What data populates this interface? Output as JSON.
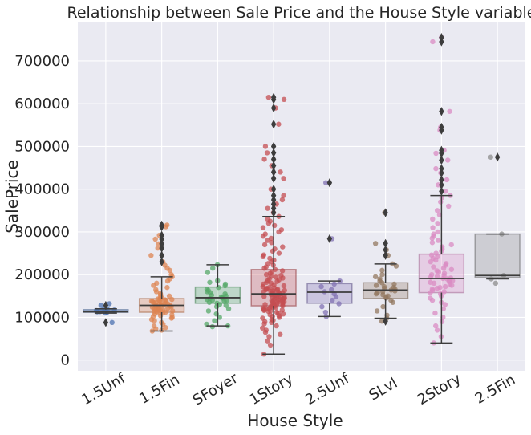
{
  "chart_data": {
    "type": "box",
    "title": "Relationship between Sale Price and the House Style variable",
    "xlabel": "House Style",
    "ylabel": "SalePrice",
    "ylim": [
      -25000,
      790000
    ],
    "yticks": [
      0,
      100000,
      200000,
      300000,
      400000,
      500000,
      600000,
      700000
    ],
    "ytick_labels": [
      "0",
      "100000",
      "200000",
      "300000",
      "400000",
      "500000",
      "600000",
      "700000"
    ],
    "grid": true,
    "background": "#eaeaf2",
    "categories": [
      "1.5Unf",
      "1.5Fin",
      "SFoyer",
      "1Story",
      "2.5Unf",
      "SLvl",
      "2Story",
      "2.5Fin"
    ],
    "colors": [
      "#4c72b0",
      "#dd8452",
      "#55a868",
      "#c44e52",
      "#8172b3",
      "#937860",
      "#da8bc3",
      "#8c8c8c"
    ],
    "boxes": [
      {
        "category": "1.5Unf",
        "whislo": 110000,
        "q1": 112000,
        "med": 113000,
        "q3": 118000,
        "whishi": 120000,
        "fliers": [
          88000,
          128000
        ]
      },
      {
        "category": "1.5Fin",
        "whislo": 68000,
        "q1": 112000,
        "med": 128000,
        "q3": 144000,
        "whishi": 195000,
        "fliers": [
          230000,
          245000,
          262000,
          272000,
          283000,
          292000,
          312000,
          316000
        ]
      },
      {
        "category": "SFoyer",
        "whislo": 80000,
        "q1": 133000,
        "med": 146000,
        "q3": 171000,
        "whishi": 223000,
        "fliers": []
      },
      {
        "category": "1Story",
        "whislo": 14000,
        "q1": 127000,
        "med": 155000,
        "q3": 212000,
        "whishi": 336000,
        "fliers": [
          345000,
          355000,
          365000,
          375000,
          385000,
          400000,
          425000,
          440000,
          455000,
          470000,
          485000,
          500000,
          552000,
          590000,
          610000,
          615000
        ]
      },
      {
        "category": "2.5Unf",
        "whislo": 102000,
        "q1": 133000,
        "med": 159000,
        "q3": 179000,
        "whishi": 185000,
        "fliers": [
          284000,
          415000
        ]
      },
      {
        "category": "SLvl",
        "whislo": 98000,
        "q1": 144000,
        "med": 164000,
        "q3": 181000,
        "whishi": 225000,
        "fliers": [
          91000,
          245000,
          258000,
          273000,
          345000
        ]
      },
      {
        "category": "2Story",
        "whislo": 40000,
        "q1": 158000,
        "med": 191000,
        "q3": 248000,
        "whishi": 385000,
        "fliers": [
          395000,
          410000,
          422000,
          438000,
          448000,
          468000,
          484000,
          491000,
          538000,
          545000,
          582000,
          745000,
          755000
        ]
      },
      {
        "category": "2.5Fin",
        "whislo": 190000,
        "q1": 193000,
        "med": 198000,
        "q3": 295000,
        "whishi": 295000,
        "fliers": [
          475000
        ]
      }
    ],
    "points": [
      [
        110000,
        112000,
        113000,
        113500,
        114000,
        115000,
        116000,
        117000,
        118000,
        120000,
        128000,
        88000,
        132000
      ],
      [
        68000,
        70000,
        73000,
        76000,
        80000,
        84000,
        88000,
        92000,
        95000,
        98000,
        100000,
        102000,
        104000,
        106000,
        108000,
        110000,
        111000,
        112000,
        113000,
        114000,
        115000,
        116000,
        117000,
        118000,
        119000,
        120000,
        121000,
        122000,
        123000,
        124000,
        125000,
        126000,
        127000,
        128000,
        129000,
        130000,
        131000,
        132000,
        133000,
        134000,
        135000,
        136000,
        137000,
        138000,
        139000,
        140000,
        141000,
        142000,
        143000,
        144000,
        146000,
        148000,
        150000,
        153000,
        156000,
        160000,
        165000,
        170000,
        175000,
        180000,
        185000,
        190000,
        195000,
        200000,
        210000,
        215000,
        222000,
        230000,
        245000,
        262000,
        272000,
        283000,
        292000,
        312000,
        316000
      ],
      [
        78000,
        80000,
        84000,
        92000,
        100000,
        108000,
        115000,
        120000,
        125000,
        128000,
        130000,
        133000,
        135000,
        137000,
        139000,
        140000,
        142000,
        144000,
        145000,
        146000,
        148000,
        150000,
        152000,
        155000,
        158000,
        160000,
        163000,
        166000,
        170000,
        174000,
        178000,
        182000,
        186000,
        205000,
        215000,
        223000
      ],
      [
        14000,
        35000,
        45000,
        55000,
        60000,
        65000,
        70000,
        75000,
        80000,
        85000,
        88000,
        90000,
        93000,
        95000,
        98000,
        100000,
        102000,
        104000,
        106000,
        108000,
        110000,
        112000,
        114000,
        115000,
        116000,
        117000,
        118000,
        119000,
        120000,
        121000,
        122000,
        123000,
        124000,
        125000,
        126000,
        127000,
        128000,
        129000,
        130000,
        131000,
        132000,
        133000,
        134000,
        135000,
        136000,
        137000,
        138000,
        139000,
        140000,
        141000,
        142000,
        143000,
        144000,
        145000,
        146000,
        147000,
        148000,
        149000,
        150000,
        151000,
        152000,
        153000,
        154000,
        155000,
        156000,
        157000,
        158000,
        159000,
        160000,
        161000,
        162000,
        163000,
        164000,
        165000,
        166000,
        167000,
        168000,
        169000,
        170000,
        172000,
        174000,
        176000,
        178000,
        180000,
        182000,
        184000,
        186000,
        188000,
        190000,
        192000,
        194000,
        196000,
        198000,
        200000,
        203000,
        206000,
        209000,
        212000,
        215000,
        218000,
        222000,
        226000,
        230000,
        234000,
        238000,
        242000,
        246000,
        250000,
        255000,
        260000,
        265000,
        270000,
        275000,
        280000,
        285000,
        290000,
        295000,
        300000,
        305000,
        310000,
        315000,
        320000,
        325000,
        330000,
        336000,
        345000,
        355000,
        365000,
        375000,
        385000,
        400000,
        425000,
        440000,
        455000,
        470000,
        485000,
        500000,
        552000,
        590000,
        610000,
        615000
      ],
      [
        102000,
        112000,
        125000,
        132000,
        140000,
        148000,
        155000,
        160000,
        165000,
        172000,
        178000,
        185000,
        284000,
        415000
      ],
      [
        91000,
        98000,
        105000,
        115000,
        125000,
        135000,
        140000,
        145000,
        148000,
        150000,
        153000,
        155000,
        158000,
        160000,
        162000,
        164000,
        166000,
        168000,
        170000,
        172000,
        175000,
        178000,
        181000,
        185000,
        190000,
        195000,
        200000,
        210000,
        220000,
        225000,
        245000,
        258000,
        273000,
        345000
      ],
      [
        40000,
        55000,
        70000,
        80000,
        90000,
        100000,
        110000,
        120000,
        130000,
        135000,
        140000,
        145000,
        150000,
        155000,
        158000,
        160000,
        163000,
        166000,
        168000,
        170000,
        172000,
        175000,
        178000,
        180000,
        182000,
        184000,
        186000,
        188000,
        190000,
        191000,
        192000,
        194000,
        196000,
        198000,
        200000,
        203000,
        206000,
        209000,
        212000,
        215000,
        218000,
        222000,
        226000,
        230000,
        234000,
        238000,
        242000,
        246000,
        250000,
        255000,
        260000,
        265000,
        270000,
        275000,
        280000,
        285000,
        290000,
        295000,
        300000,
        310000,
        320000,
        330000,
        340000,
        350000,
        360000,
        370000,
        380000,
        385000,
        395000,
        410000,
        422000,
        438000,
        448000,
        468000,
        484000,
        491000,
        538000,
        545000,
        582000,
        745000,
        755000
      ],
      [
        180000,
        190000,
        198000,
        295000,
        475000
      ]
    ]
  }
}
